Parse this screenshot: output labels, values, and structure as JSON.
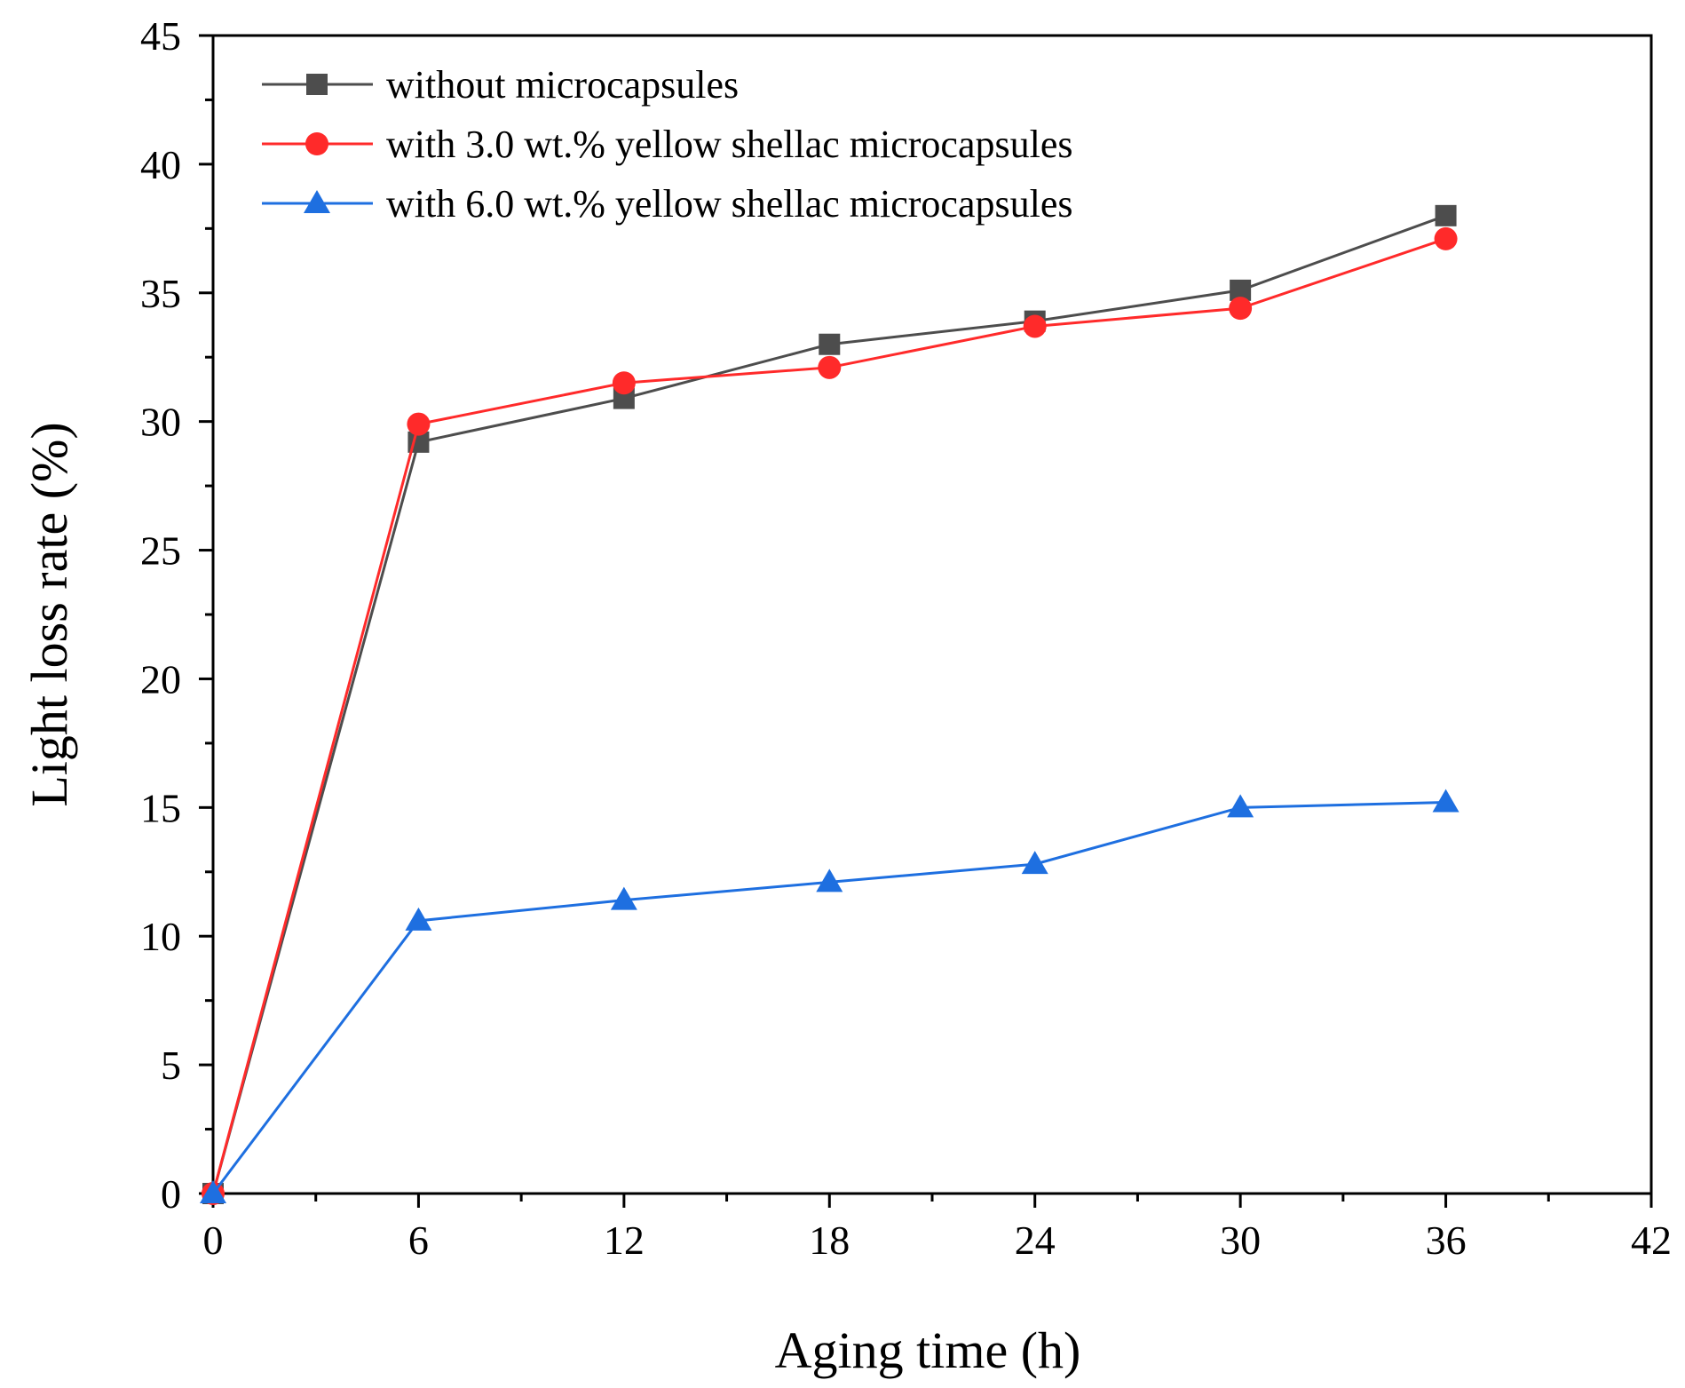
{
  "chart_data": {
    "type": "line",
    "title": "",
    "xlabel": "Aging time (h)",
    "ylabel": "Light loss rate (%)",
    "xlim": [
      0,
      42
    ],
    "ylim": [
      0,
      45
    ],
    "x_ticks": [
      0,
      6,
      12,
      18,
      24,
      30,
      36,
      42
    ],
    "y_ticks": [
      0,
      5,
      10,
      15,
      20,
      25,
      30,
      35,
      40,
      45
    ],
    "grid": false,
    "legend_position": "top-left",
    "x": [
      0,
      6,
      12,
      18,
      24,
      30,
      36
    ],
    "series": [
      {
        "name": "without microcapsules",
        "color": "#4d4d4d",
        "marker": "square",
        "values": [
          0,
          29.2,
          30.9,
          33.0,
          33.9,
          35.1,
          38.0
        ]
      },
      {
        "name": "with 3.0 wt.% yellow shellac microcapsules",
        "color": "#ff2a2a",
        "marker": "circle",
        "values": [
          0,
          29.9,
          31.5,
          32.1,
          33.7,
          34.4,
          37.1
        ]
      },
      {
        "name": "with 6.0 wt.% yellow shellac microcapsules",
        "color": "#1e6fe0",
        "marker": "triangle",
        "values": [
          0,
          10.6,
          11.4,
          12.1,
          12.8,
          15.0,
          15.2
        ]
      }
    ]
  }
}
